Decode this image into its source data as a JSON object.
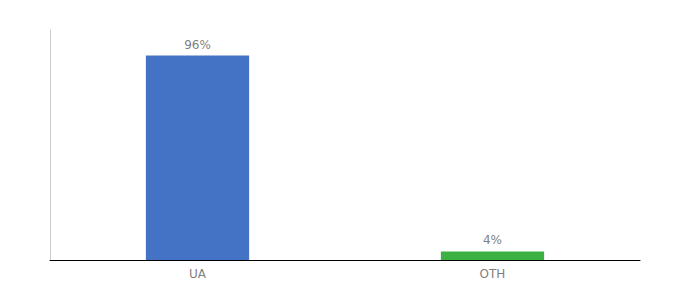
{
  "chart_data": {
    "type": "bar",
    "categories": [
      "UA",
      "OTH"
    ],
    "values": [
      96,
      4
    ],
    "value_labels": [
      "96%",
      "4%"
    ],
    "colors": [
      "#4472c4",
      "#3cb043"
    ],
    "ylim": [
      0,
      108
    ],
    "data_labels": true,
    "tick_labels": "x",
    "grid": false
  }
}
